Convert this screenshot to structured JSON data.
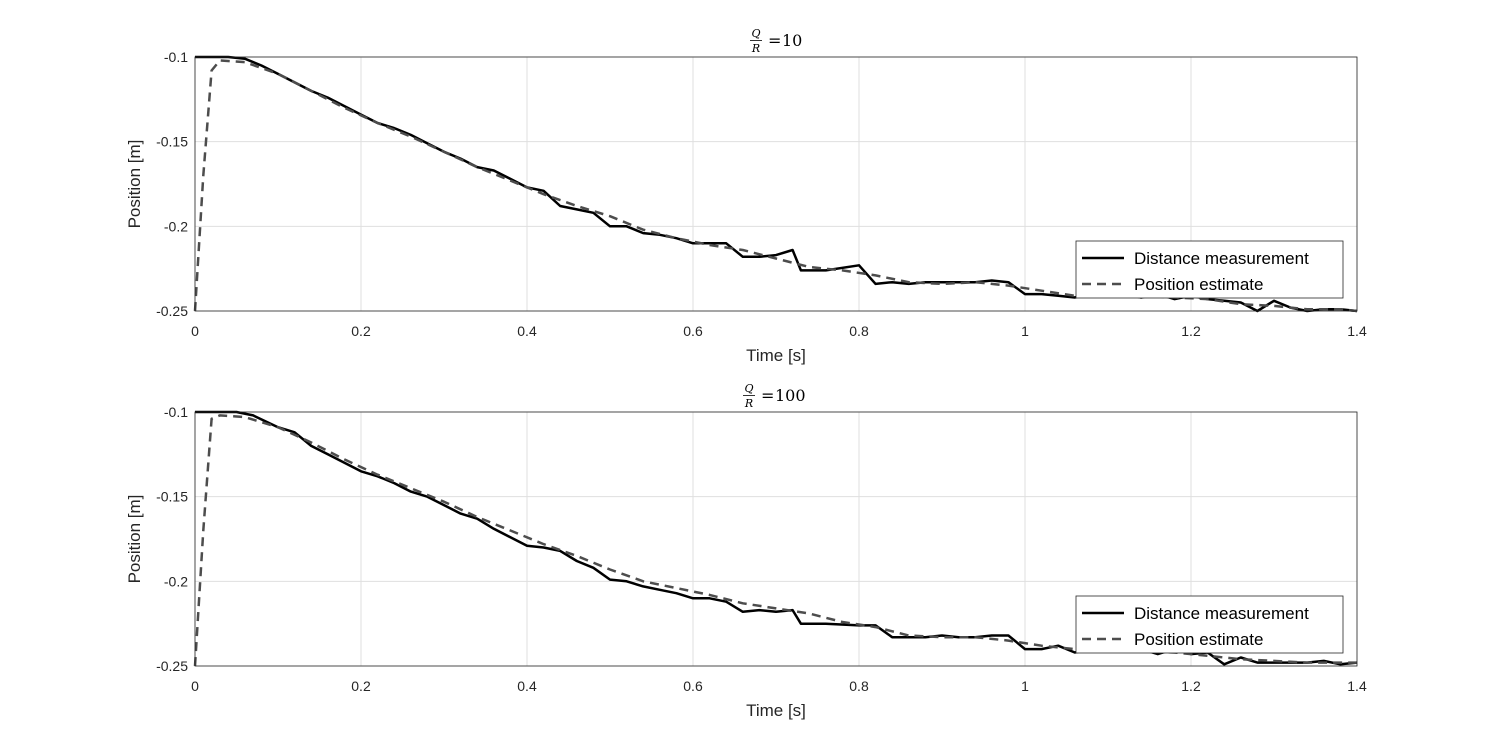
{
  "chart_data": [
    {
      "type": "line",
      "title": {
        "numerator": "Q",
        "denominator": "R",
        "value": "10"
      },
      "xlabel": "Time [s]",
      "ylabel": "Position [m]",
      "xlim": [
        0,
        1.4
      ],
      "ylim": [
        -0.25,
        -0.1
      ],
      "xticks": [
        "0",
        "0.2",
        "0.4",
        "0.6",
        "0.8",
        "1",
        "1.2",
        "1.4"
      ],
      "yticks": [
        "-0.1",
        "-0.15",
        "-0.2",
        "-0.25"
      ],
      "grid": true,
      "legend_position": "bottom-right",
      "series": [
        {
          "name": "Distance measurement",
          "style": "solid",
          "color": "#000000",
          "x": [
            0,
            0.02,
            0.04,
            0.06,
            0.08,
            0.1,
            0.12,
            0.14,
            0.16,
            0.18,
            0.2,
            0.22,
            0.24,
            0.26,
            0.28,
            0.3,
            0.32,
            0.34,
            0.36,
            0.38,
            0.4,
            0.42,
            0.44,
            0.46,
            0.48,
            0.5,
            0.52,
            0.54,
            0.56,
            0.58,
            0.6,
            0.62,
            0.64,
            0.66,
            0.68,
            0.7,
            0.72,
            0.73,
            0.76,
            0.8,
            0.82,
            0.84,
            0.86,
            0.88,
            0.9,
            0.92,
            0.94,
            0.96,
            0.98,
            1.0,
            1.02,
            1.04,
            1.06,
            1.08,
            1.1,
            1.12,
            1.14,
            1.16,
            1.18,
            1.2,
            1.22,
            1.24,
            1.26,
            1.28,
            1.3,
            1.32,
            1.34,
            1.36,
            1.38,
            1.4
          ],
          "y": [
            -0.1,
            -0.1,
            -0.1,
            -0.101,
            -0.105,
            -0.11,
            -0.115,
            -0.12,
            -0.124,
            -0.129,
            -0.134,
            -0.139,
            -0.142,
            -0.146,
            -0.151,
            -0.156,
            -0.16,
            -0.165,
            -0.167,
            -0.172,
            -0.177,
            -0.179,
            -0.188,
            -0.19,
            -0.192,
            -0.2,
            -0.2,
            -0.204,
            -0.205,
            -0.207,
            -0.21,
            -0.21,
            -0.21,
            -0.218,
            -0.218,
            -0.217,
            -0.214,
            -0.226,
            -0.226,
            -0.223,
            -0.234,
            -0.233,
            -0.234,
            -0.233,
            -0.233,
            -0.233,
            -0.233,
            -0.232,
            -0.233,
            -0.24,
            -0.24,
            -0.241,
            -0.242,
            -0.239,
            -0.241,
            -0.24,
            -0.242,
            -0.24,
            -0.243,
            -0.241,
            -0.243,
            -0.244,
            -0.245,
            -0.25,
            -0.244,
            -0.248,
            -0.25,
            -0.249,
            -0.249,
            -0.25
          ]
        },
        {
          "name": "Position estimate",
          "style": "dashed",
          "color": "#4d4d4d",
          "x": [
            0,
            0.01,
            0.02,
            0.03,
            0.06,
            0.1,
            0.14,
            0.18,
            0.22,
            0.26,
            0.3,
            0.34,
            0.38,
            0.42,
            0.46,
            0.5,
            0.54,
            0.58,
            0.62,
            0.66,
            0.7,
            0.74,
            0.78,
            0.82,
            0.86,
            0.9,
            0.94,
            0.98,
            1.02,
            1.06,
            1.1,
            1.14,
            1.18,
            1.22,
            1.26,
            1.3,
            1.34,
            1.38,
            1.4
          ],
          "y": [
            -0.25,
            -0.17,
            -0.108,
            -0.102,
            -0.103,
            -0.11,
            -0.12,
            -0.13,
            -0.139,
            -0.147,
            -0.156,
            -0.165,
            -0.173,
            -0.181,
            -0.188,
            -0.194,
            -0.202,
            -0.207,
            -0.211,
            -0.214,
            -0.219,
            -0.224,
            -0.226,
            -0.229,
            -0.233,
            -0.234,
            -0.233,
            -0.235,
            -0.238,
            -0.241,
            -0.241,
            -0.241,
            -0.242,
            -0.243,
            -0.246,
            -0.247,
            -0.249,
            -0.249,
            -0.25
          ]
        }
      ]
    },
    {
      "type": "line",
      "title": {
        "numerator": "Q",
        "denominator": "R",
        "value": "100"
      },
      "xlabel": "Time [s]",
      "ylabel": "Position [m]",
      "xlim": [
        0,
        1.4
      ],
      "ylim": [
        -0.25,
        -0.1
      ],
      "xticks": [
        "0",
        "0.2",
        "0.4",
        "0.6",
        "0.8",
        "1",
        "1.2",
        "1.4"
      ],
      "yticks": [
        "-0.1",
        "-0.15",
        "-0.2",
        "-0.25"
      ],
      "grid": true,
      "legend_position": "bottom-right",
      "series": [
        {
          "name": "Distance measurement",
          "style": "solid",
          "color": "#000000",
          "x": [
            0,
            0.02,
            0.04,
            0.05,
            0.07,
            0.1,
            0.12,
            0.14,
            0.16,
            0.18,
            0.2,
            0.22,
            0.24,
            0.26,
            0.28,
            0.3,
            0.32,
            0.34,
            0.36,
            0.38,
            0.4,
            0.42,
            0.44,
            0.46,
            0.48,
            0.5,
            0.52,
            0.54,
            0.56,
            0.58,
            0.6,
            0.62,
            0.64,
            0.66,
            0.68,
            0.7,
            0.72,
            0.73,
            0.76,
            0.8,
            0.82,
            0.84,
            0.86,
            0.88,
            0.9,
            0.92,
            0.94,
            0.96,
            0.98,
            1.0,
            1.02,
            1.04,
            1.06,
            1.08,
            1.1,
            1.12,
            1.14,
            1.16,
            1.18,
            1.2,
            1.22,
            1.24,
            1.26,
            1.28,
            1.3,
            1.32,
            1.34,
            1.36,
            1.38,
            1.4
          ],
          "y": [
            -0.1,
            -0.1,
            -0.1,
            -0.1,
            -0.102,
            -0.109,
            -0.112,
            -0.12,
            -0.125,
            -0.13,
            -0.135,
            -0.138,
            -0.142,
            -0.147,
            -0.15,
            -0.155,
            -0.16,
            -0.163,
            -0.169,
            -0.174,
            -0.179,
            -0.18,
            -0.182,
            -0.188,
            -0.192,
            -0.199,
            -0.2,
            -0.203,
            -0.205,
            -0.207,
            -0.21,
            -0.21,
            -0.212,
            -0.218,
            -0.217,
            -0.218,
            -0.217,
            -0.225,
            -0.225,
            -0.226,
            -0.226,
            -0.233,
            -0.233,
            -0.233,
            -0.232,
            -0.233,
            -0.233,
            -0.232,
            -0.232,
            -0.24,
            -0.24,
            -0.238,
            -0.242,
            -0.24,
            -0.241,
            -0.241,
            -0.24,
            -0.243,
            -0.24,
            -0.243,
            -0.242,
            -0.249,
            -0.245,
            -0.248,
            -0.248,
            -0.248,
            -0.248,
            -0.247,
            -0.249,
            -0.248
          ]
        },
        {
          "name": "Position estimate",
          "style": "dashed",
          "color": "#4d4d4d",
          "x": [
            0,
            0.01,
            0.02,
            0.03,
            0.06,
            0.1,
            0.14,
            0.18,
            0.22,
            0.26,
            0.3,
            0.34,
            0.38,
            0.42,
            0.46,
            0.5,
            0.54,
            0.58,
            0.62,
            0.66,
            0.7,
            0.74,
            0.78,
            0.82,
            0.86,
            0.9,
            0.94,
            0.98,
            1.02,
            1.06,
            1.1,
            1.14,
            1.18,
            1.22,
            1.26,
            1.3,
            1.34,
            1.38,
            1.4
          ],
          "y": [
            -0.25,
            -0.17,
            -0.104,
            -0.102,
            -0.103,
            -0.109,
            -0.118,
            -0.128,
            -0.137,
            -0.145,
            -0.153,
            -0.162,
            -0.17,
            -0.178,
            -0.185,
            -0.193,
            -0.2,
            -0.204,
            -0.208,
            -0.213,
            -0.216,
            -0.219,
            -0.224,
            -0.227,
            -0.232,
            -0.233,
            -0.233,
            -0.235,
            -0.238,
            -0.24,
            -0.241,
            -0.241,
            -0.242,
            -0.244,
            -0.246,
            -0.247,
            -0.248,
            -0.248,
            -0.248
          ]
        }
      ]
    }
  ]
}
